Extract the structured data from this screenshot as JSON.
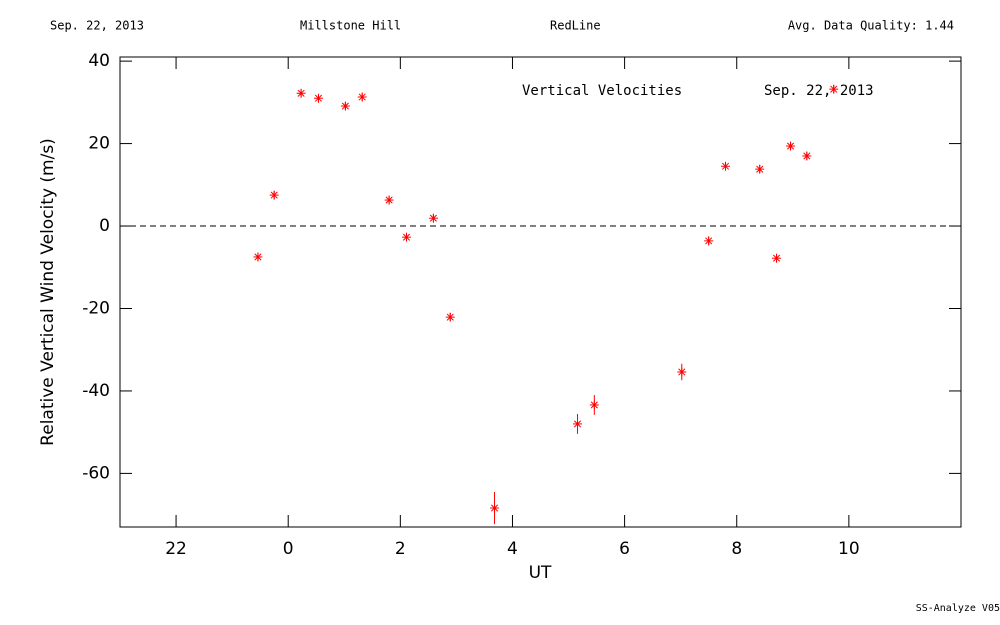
{
  "chart_data": {
    "type": "scatter",
    "header": [
      "Sep. 22, 2013",
      "Millstone Hill",
      "RedLine",
      "Avg. Data Quality: 1.44"
    ],
    "annotations": [
      "Vertical Velocities",
      "Sep. 22, 2013"
    ],
    "footer": "SS-Analyze V05",
    "x_label": "UT",
    "y_label": "Relative Vertical Wind Velocity (m/s)",
    "x": [
      -0.54,
      -0.25,
      0.23,
      0.54,
      1.02,
      1.32,
      1.8,
      2.11,
      2.59,
      2.89,
      3.68,
      5.16,
      5.46,
      7.02,
      7.5,
      7.8,
      8.41,
      8.71,
      8.96,
      9.25,
      9.73
    ],
    "values": [
      -7.5,
      7.5,
      32.2,
      31.0,
      29.1,
      31.3,
      6.3,
      -2.7,
      1.9,
      -22.1,
      -68.4,
      -48.0,
      -43.4,
      -35.4,
      -3.6,
      14.5,
      13.8,
      -7.8,
      19.4,
      17.0,
      33.2
    ],
    "errors": [
      1.0,
      1.0,
      1.0,
      1.0,
      1.0,
      1.0,
      1.0,
      1.0,
      1.0,
      1.0,
      3.9,
      2.4,
      2.4,
      2.0,
      1.0,
      1.0,
      1.0,
      1.0,
      1.0,
      1.0,
      1.0
    ],
    "color": "#ff0000",
    "reference_line": 0,
    "xlim": [
      -3,
      12
    ],
    "xticks": [
      {
        "value": -2,
        "label": "22"
      },
      0,
      2,
      4,
      6,
      8,
      10
    ],
    "ylim": [
      -73,
      41
    ],
    "yticks": [
      -60,
      -40,
      -20,
      0,
      20,
      40
    ]
  }
}
